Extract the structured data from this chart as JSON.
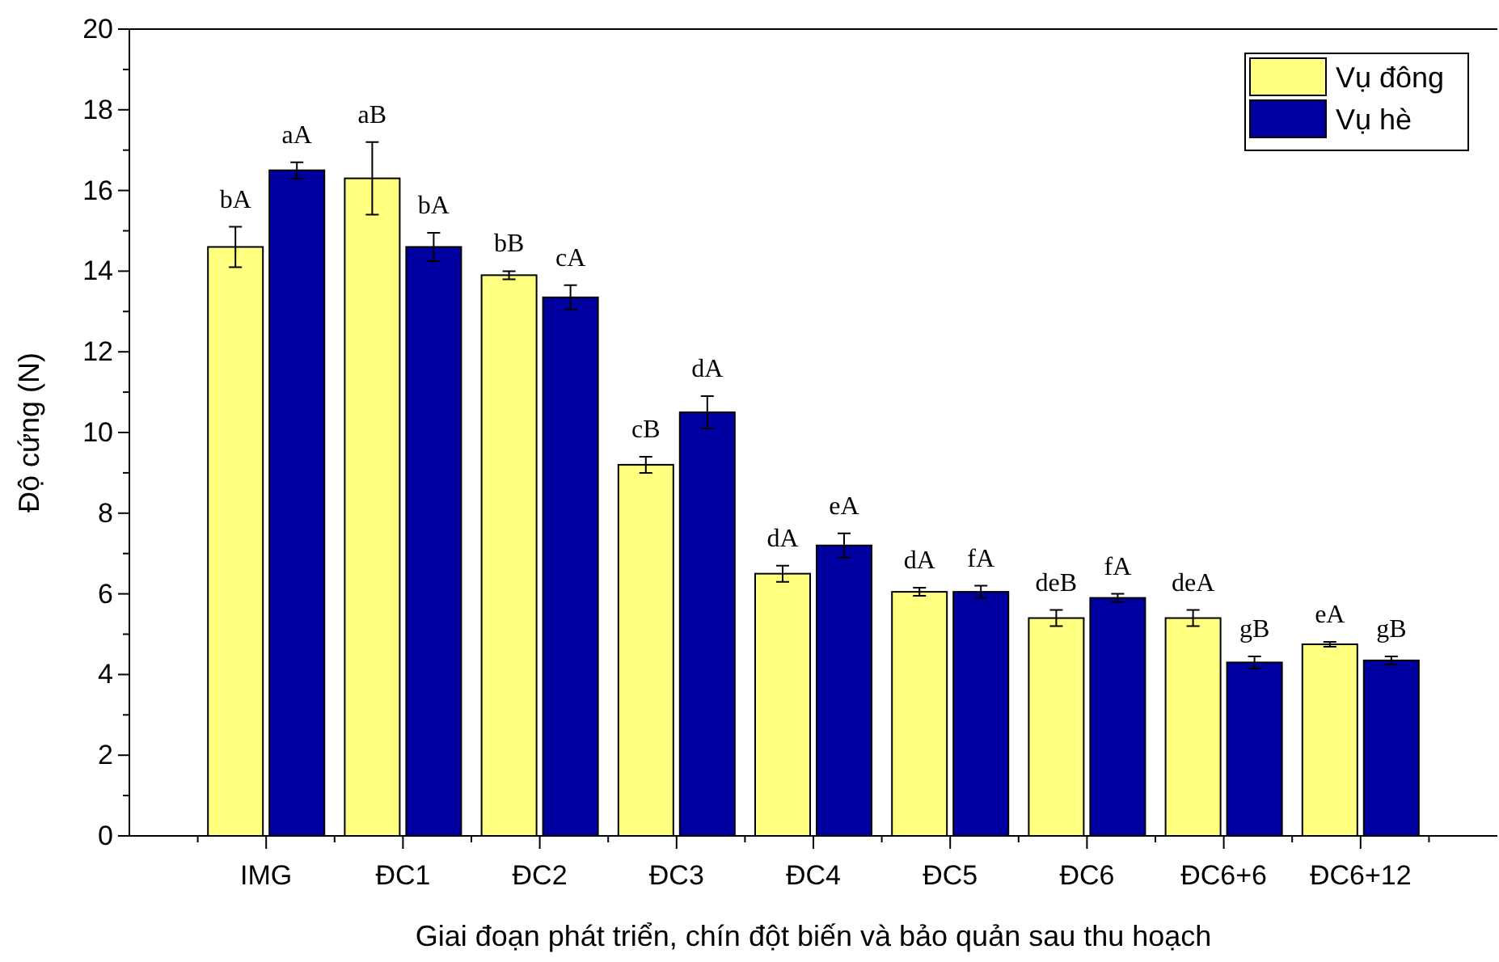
{
  "chart_data": {
    "type": "bar",
    "xlabel": "Giai đoạn phát triển, chín đột biến và bảo quản sau thu hoạch",
    "ylabel": "Độ cứng (N)",
    "categories": [
      "IMG",
      "ĐC1",
      "ĐC2",
      "ĐC3",
      "ĐC4",
      "ĐC5",
      "ĐC6",
      "ĐC6+6",
      "ĐC6+12"
    ],
    "series": [
      {
        "name": "Vụ đông",
        "color": "#ffff80",
        "values": [
          14.6,
          16.3,
          13.9,
          9.2,
          6.5,
          6.05,
          5.4,
          5.4,
          4.75
        ],
        "errors": [
          0.5,
          0.9,
          0.1,
          0.2,
          0.2,
          0.1,
          0.2,
          0.2,
          0.06
        ],
        "value_labels": [
          "bA",
          "aB",
          "bB",
          "cB",
          "dA",
          "dA",
          "deB",
          "deA",
          "eA"
        ]
      },
      {
        "name": "Vụ hè",
        "color": "#0000a0",
        "values": [
          16.5,
          14.6,
          13.35,
          10.5,
          7.2,
          6.05,
          5.9,
          4.3,
          4.35
        ],
        "errors": [
          0.2,
          0.35,
          0.3,
          0.4,
          0.3,
          0.15,
          0.1,
          0.15,
          0.1
        ],
        "value_labels": [
          "aA",
          "bA",
          "cA",
          "dA",
          "eA",
          "fA",
          "fA",
          "gB",
          "gB"
        ]
      }
    ],
    "ylim": [
      0,
      20
    ],
    "yticks": [
      0,
      2,
      4,
      6,
      8,
      10,
      12,
      14,
      16,
      18,
      20
    ],
    "grid": false,
    "legend": "top right"
  }
}
